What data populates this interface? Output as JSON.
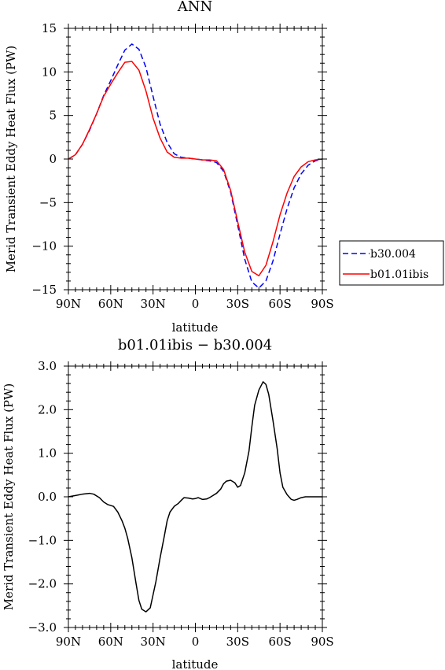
{
  "chart_data": [
    {
      "type": "line",
      "title": "ANN",
      "xlabel": "latitude",
      "ylabel": "Merid Transient Eddy Heat Flux (PW)",
      "xlim": [
        90,
        -90
      ],
      "ylim": [
        -15,
        15
      ],
      "xticks": [
        {
          "value": 90,
          "label": "90N"
        },
        {
          "value": 60,
          "label": "60N"
        },
        {
          "value": 30,
          "label": "30N"
        },
        {
          "value": 0,
          "label": "0"
        },
        {
          "value": -30,
          "label": "30S"
        },
        {
          "value": -60,
          "label": "60S"
        },
        {
          "value": -90,
          "label": "90S"
        }
      ],
      "yticks": [
        {
          "value": 15,
          "label": "15"
        },
        {
          "value": 10,
          "label": "10"
        },
        {
          "value": 5,
          "label": "5"
        },
        {
          "value": 0,
          "label": "0"
        },
        {
          "value": -5,
          "label": "−5"
        },
        {
          "value": -10,
          "label": "−10"
        },
        {
          "value": -15,
          "label": "−15"
        }
      ],
      "legend_position": "right",
      "x": [
        90,
        85,
        80,
        75,
        70,
        65,
        60,
        55,
        50,
        45,
        40,
        35,
        30,
        25,
        20,
        15,
        10,
        5,
        0,
        -5,
        -10,
        -15,
        -20,
        -25,
        -30,
        -35,
        -40,
        -45,
        -50,
        -55,
        -60,
        -65,
        -70,
        -75,
        -80,
        -85,
        -90
      ],
      "series": [
        {
          "name": "b30.004",
          "color": "#0000ff",
          "dash": "dashed",
          "values": [
            0.0,
            0.5,
            1.7,
            3.3,
            5.2,
            7.3,
            9.0,
            10.8,
            12.5,
            13.2,
            12.6,
            10.5,
            7.2,
            4.0,
            1.9,
            0.6,
            0.2,
            0.1,
            0.0,
            -0.1,
            -0.2,
            -0.4,
            -1.4,
            -3.8,
            -7.6,
            -11.5,
            -14.1,
            -14.8,
            -14.0,
            -11.7,
            -8.6,
            -5.7,
            -3.3,
            -1.7,
            -0.7,
            -0.2,
            0.0
          ]
        },
        {
          "name": "b01.01ibis",
          "color": "#ff0000",
          "dash": "solid",
          "values": [
            0.0,
            0.5,
            1.7,
            3.4,
            5.2,
            7.2,
            8.6,
            9.9,
            11.1,
            11.2,
            10.2,
            7.8,
            4.7,
            2.4,
            0.8,
            0.2,
            0.1,
            0.1,
            0.0,
            -0.1,
            -0.1,
            -0.2,
            -1.2,
            -3.6,
            -7.2,
            -10.7,
            -12.9,
            -13.4,
            -12.2,
            -9.5,
            -6.4,
            -3.9,
            -2.0,
            -0.9,
            -0.3,
            -0.1,
            0.0
          ]
        }
      ]
    },
    {
      "type": "line",
      "title": "b01.01ibis − b30.004",
      "xlabel": "latitude",
      "ylabel": "Merid Transient Eddy Heat Flux (PW)",
      "xlim": [
        90,
        -90
      ],
      "ylim": [
        -3,
        3
      ],
      "xticks": [
        {
          "value": 90,
          "label": "90N"
        },
        {
          "value": 60,
          "label": "60N"
        },
        {
          "value": 30,
          "label": "30N"
        },
        {
          "value": 0,
          "label": "0"
        },
        {
          "value": -30,
          "label": "30S"
        },
        {
          "value": -60,
          "label": "60S"
        },
        {
          "value": -90,
          "label": "90S"
        }
      ],
      "yticks": [
        {
          "value": 3,
          "label": "3.0"
        },
        {
          "value": 2,
          "label": "2.0"
        },
        {
          "value": 1,
          "label": "1.0"
        },
        {
          "value": 0,
          "label": "0.0"
        },
        {
          "value": -1,
          "label": "−1.0"
        },
        {
          "value": -2,
          "label": "−2.0"
        },
        {
          "value": -3,
          "label": "−3.0"
        }
      ],
      "x": [
        90,
        85,
        80,
        75,
        72,
        68,
        65,
        62,
        58,
        55,
        52,
        50,
        48,
        45,
        42,
        40,
        38,
        35,
        32,
        30,
        28,
        25,
        22,
        20,
        18,
        15,
        12,
        10,
        8,
        5,
        2,
        0,
        -2,
        -5,
        -8,
        -10,
        -12,
        -15,
        -18,
        -20,
        -22,
        -25,
        -28,
        -30,
        -32,
        -35,
        -38,
        -40,
        -42,
        -45,
        -48,
        -50,
        -52,
        -55,
        -58,
        -60,
        -62,
        -65,
        -68,
        -70,
        -72,
        -75,
        -78,
        -80,
        -82,
        -85,
        -88,
        -90
      ],
      "series": [
        {
          "name": "",
          "color": "#000000",
          "dash": "solid",
          "values": [
            0.0,
            0.03,
            0.06,
            0.08,
            0.06,
            -0.02,
            -0.12,
            -0.18,
            -0.22,
            -0.35,
            -0.55,
            -0.72,
            -0.95,
            -1.4,
            -2.0,
            -2.38,
            -2.58,
            -2.64,
            -2.55,
            -2.25,
            -1.95,
            -1.4,
            -0.9,
            -0.55,
            -0.35,
            -0.22,
            -0.15,
            -0.08,
            -0.02,
            -0.03,
            -0.05,
            -0.04,
            -0.02,
            -0.06,
            -0.05,
            -0.02,
            0.02,
            0.08,
            0.18,
            0.3,
            0.36,
            0.38,
            0.32,
            0.22,
            0.26,
            0.55,
            1.05,
            1.6,
            2.1,
            2.45,
            2.64,
            2.58,
            2.35,
            1.75,
            1.1,
            0.55,
            0.22,
            0.05,
            -0.06,
            -0.08,
            -0.06,
            -0.02,
            0.0,
            0.0,
            0.0,
            0.0,
            0.0,
            0.0
          ]
        }
      ]
    }
  ]
}
